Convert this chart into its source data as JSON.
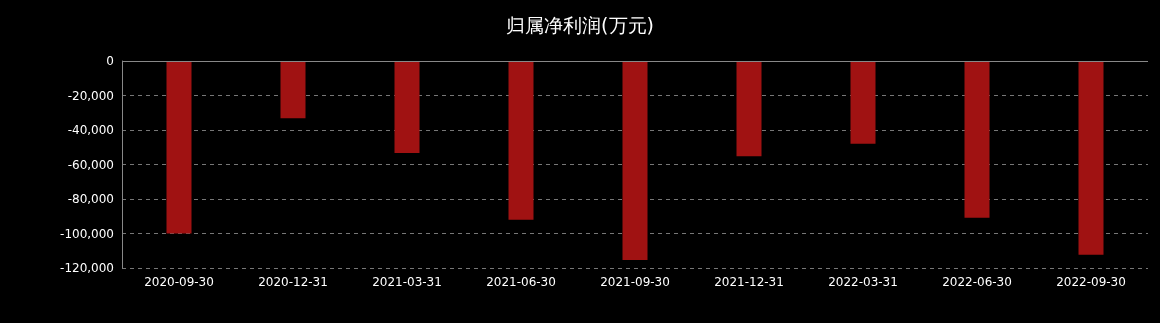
{
  "chart_data": {
    "type": "bar",
    "title": "归属净利润(万元)",
    "categories": [
      "2020-09-30",
      "2020-12-31",
      "2021-03-31",
      "2021-06-30",
      "2021-09-30",
      "2021-12-31",
      "2022-03-31",
      "2022-06-30",
      "2022-09-30"
    ],
    "values": [
      -100000,
      -33200,
      -53400,
      -92100,
      -115400,
      -55200,
      -47900,
      -90800,
      -112300
    ],
    "color": "#a01212",
    "ylim": [
      -120000,
      0
    ],
    "yticks": [
      {
        "value": 0,
        "label": "0"
      },
      {
        "value": -20000,
        "label": "-20,000"
      },
      {
        "value": -40000,
        "label": "-40,000"
      },
      {
        "value": -60000,
        "label": "-60,000"
      },
      {
        "value": -80000,
        "label": "-80,000"
      },
      {
        "value": -100000,
        "label": "-100,000"
      },
      {
        "value": -120000,
        "label": "-120,000"
      }
    ],
    "grid": "y"
  }
}
